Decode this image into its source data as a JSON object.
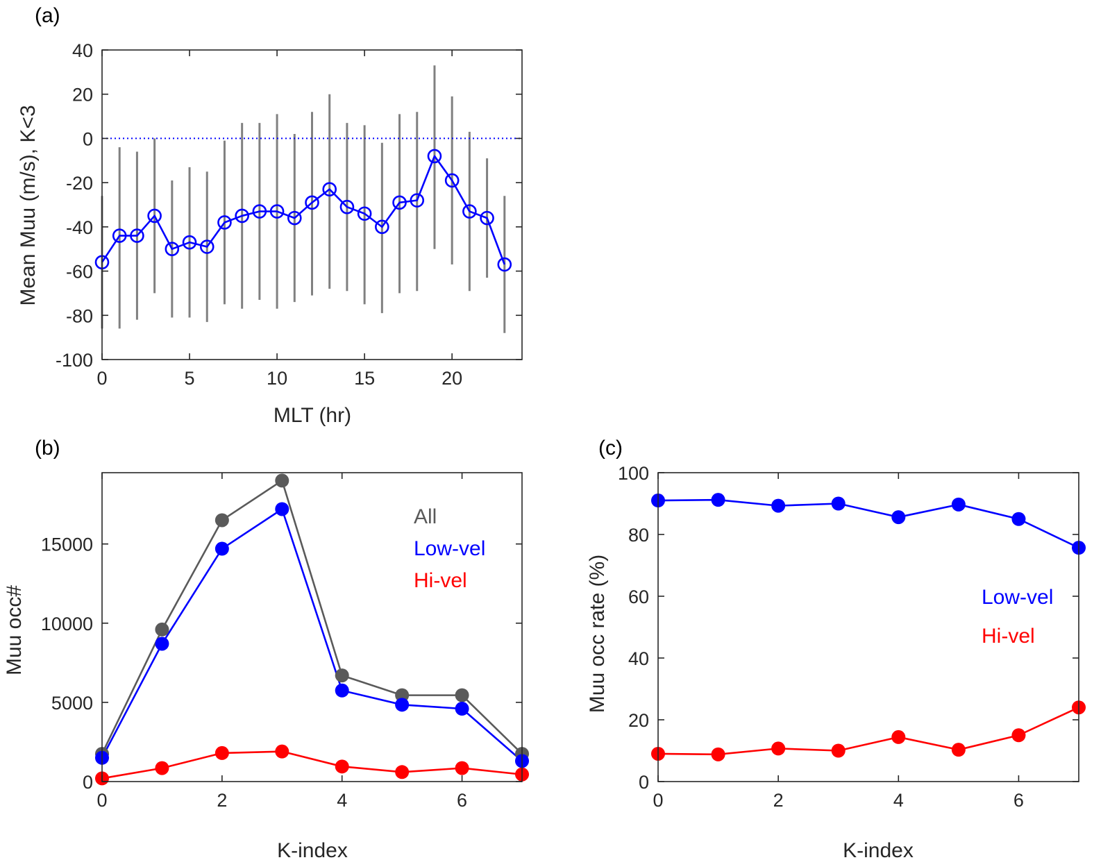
{
  "colors": {
    "blue": "#0000ff",
    "red": "#ff0000",
    "gray": "#5a5a5a",
    "errorbar": "#808080",
    "axis": "#262626"
  },
  "chart_data": [
    {
      "id": "a",
      "panel_label": "(a)",
      "type": "line",
      "xlabel": "MLT (hr)",
      "ylabel": "Mean Muu (m/s), K<3",
      "xlim": [
        0,
        24
      ],
      "ylim": [
        -100,
        40
      ],
      "xticks": [
        0,
        5,
        10,
        15,
        20
      ],
      "yticks": [
        -100,
        -80,
        -60,
        -40,
        -20,
        0,
        20,
        40
      ],
      "reference_line": {
        "y": 0,
        "style": "dotted",
        "color": "#0000ff"
      },
      "marker": "open-circle",
      "x": [
        0,
        1,
        2,
        3,
        4,
        5,
        6,
        7,
        8,
        9,
        10,
        11,
        12,
        13,
        14,
        15,
        16,
        17,
        18,
        19,
        20,
        21,
        22,
        23
      ],
      "series": [
        {
          "values": [
            -56,
            -44,
            -44,
            -35,
            -50,
            -47,
            -49,
            -38,
            -35,
            -33,
            -33,
            -36,
            -29,
            -23,
            -31,
            -34,
            -40,
            -29,
            -28,
            -8,
            -19,
            -33,
            -36,
            -57
          ],
          "err_low": [
            -86,
            -86,
            -82,
            -70,
            -81,
            -81,
            -83,
            -75,
            -77,
            -73,
            -77,
            -74,
            -71,
            -68,
            -69,
            -75,
            -79,
            -70,
            -69,
            -50,
            -57,
            -69,
            -63,
            -88
          ],
          "err_high": [
            -26,
            -4,
            -6,
            0,
            -19,
            -13,
            -15,
            -1,
            7,
            7,
            11,
            2,
            12,
            20,
            7,
            6,
            -2,
            11,
            12,
            33,
            19,
            3,
            -9,
            -26
          ],
          "color": "#0000ff"
        }
      ]
    },
    {
      "id": "b",
      "panel_label": "(b)",
      "type": "line",
      "xlabel": "K-index",
      "ylabel": "Muu occ#",
      "xlim": [
        0,
        7
      ],
      "ylim": [
        0,
        19500
      ],
      "xticks": [
        0,
        2,
        4,
        6
      ],
      "yticks": [
        0,
        5000,
        10000,
        15000
      ],
      "marker": "filled-circle",
      "legend_position": "top-right",
      "x": [
        0,
        1,
        2,
        3,
        4,
        5,
        6,
        7
      ],
      "series": [
        {
          "name": "All",
          "values": [
            1750,
            9600,
            16500,
            19000,
            6700,
            5450,
            5450,
            1750
          ],
          "color": "#5a5a5a"
        },
        {
          "name": "Low-vel",
          "values": [
            1500,
            8700,
            14700,
            17200,
            5750,
            4850,
            4600,
            1300
          ],
          "color": "#0000ff"
        },
        {
          "name": "Hi-vel",
          "values": [
            200,
            850,
            1800,
            1900,
            950,
            600,
            850,
            450
          ],
          "color": "#ff0000"
        }
      ]
    },
    {
      "id": "c",
      "panel_label": "(c)",
      "type": "line",
      "xlabel": "K-index",
      "ylabel": "Muu occ rate (%)",
      "xlim": [
        0,
        7
      ],
      "ylim": [
        0,
        100
      ],
      "xticks": [
        0,
        2,
        4,
        6
      ],
      "yticks": [
        0,
        20,
        40,
        60,
        80,
        100
      ],
      "marker": "filled-circle",
      "legend_position": "right",
      "x": [
        0,
        1,
        2,
        3,
        4,
        5,
        6,
        7
      ],
      "series": [
        {
          "name": "Low-vel",
          "values": [
            91,
            91.2,
            89.3,
            90,
            85.6,
            89.7,
            85,
            75.7
          ],
          "color": "#0000ff"
        },
        {
          "name": "Hi-vel",
          "values": [
            9,
            8.8,
            10.7,
            10,
            14.4,
            10.3,
            15,
            24
          ],
          "color": "#ff0000"
        }
      ]
    }
  ]
}
